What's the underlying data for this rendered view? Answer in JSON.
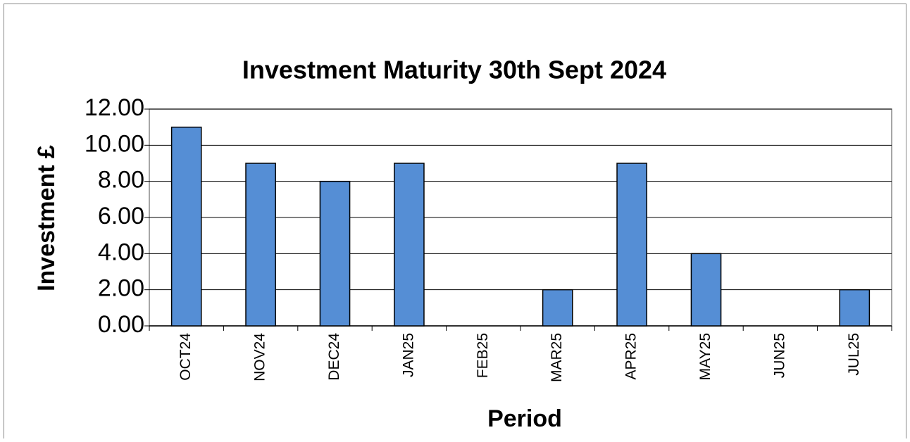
{
  "chart_data": {
    "type": "bar",
    "title": "Investment Maturity 30th Sept 2024",
    "x_label": "Period",
    "y_label": "Investment £",
    "categories": [
      "OCT24",
      "NOV24",
      "DEC24",
      "JAN25",
      "FEB25",
      "MAR25",
      "APR25",
      "MAY25",
      "JUN25",
      "JUL25"
    ],
    "values": [
      11,
      9,
      8,
      9,
      0,
      2,
      9,
      4,
      0,
      2
    ],
    "color": "#558ed5",
    "ylim": [
      0,
      12
    ],
    "yticks": [
      {
        "value": 0,
        "label": "0.00"
      },
      {
        "value": 2,
        "label": "2.00"
      },
      {
        "value": 4,
        "label": "4.00"
      },
      {
        "value": 6,
        "label": "6.00"
      },
      {
        "value": 8,
        "label": "8.00"
      },
      {
        "value": 10,
        "label": "10.00"
      },
      {
        "value": 12,
        "label": "12.00"
      }
    ],
    "grid": true
  }
}
